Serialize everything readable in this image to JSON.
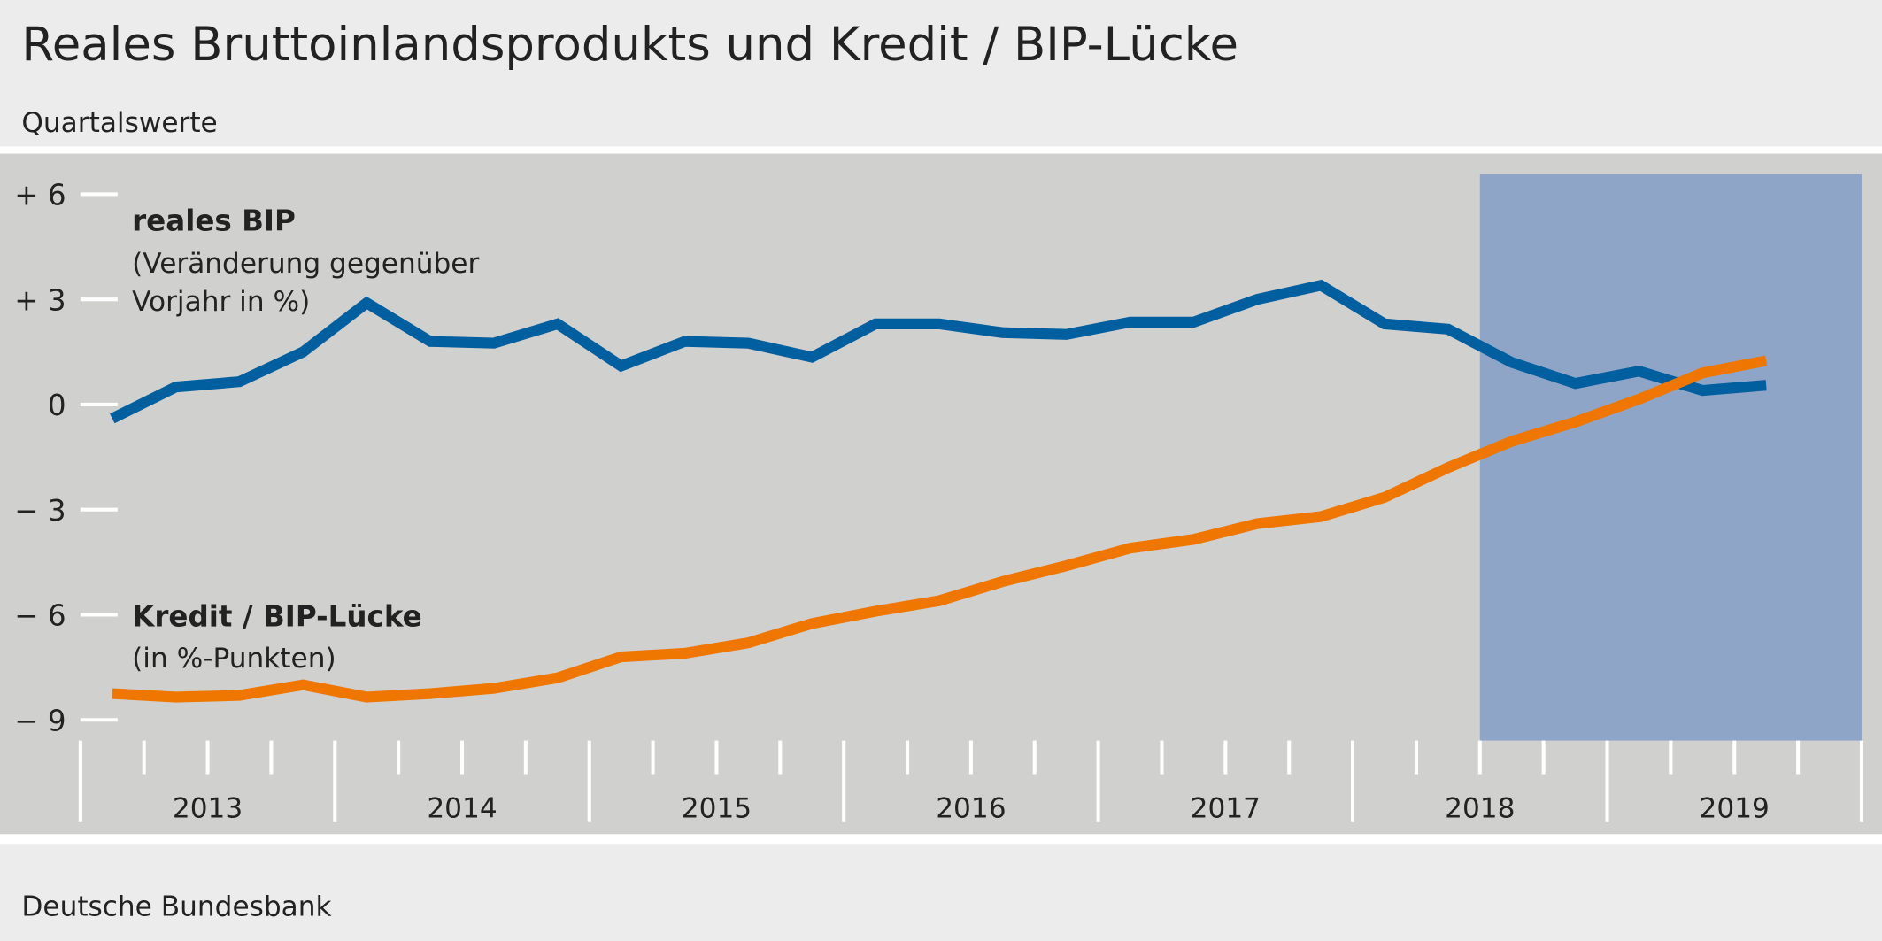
{
  "title": "Reales Bruttoinlandsprodukts und Kredit / BIP-Lücke",
  "subtitle": "Quartalswerte",
  "source": "Deutsche Bundesbank",
  "colors": {
    "bip": "#005f9f",
    "gap": "#ef7700",
    "shade": "#8ea5c8",
    "plot_bg": "#d0d0cf",
    "page_bg": "#ececec"
  },
  "chart_data": {
    "type": "line",
    "x": [
      "2013Q1",
      "2013Q2",
      "2013Q3",
      "2013Q4",
      "2014Q1",
      "2014Q2",
      "2014Q3",
      "2014Q4",
      "2015Q1",
      "2015Q2",
      "2015Q3",
      "2015Q4",
      "2016Q1",
      "2016Q2",
      "2016Q3",
      "2016Q4",
      "2017Q1",
      "2017Q2",
      "2017Q3",
      "2017Q4",
      "2018Q1",
      "2018Q2",
      "2018Q3",
      "2018Q4",
      "2019Q1",
      "2019Q2",
      "2019Q3"
    ],
    "year_labels": [
      "2013",
      "2014",
      "2015",
      "2016",
      "2017",
      "2018",
      "2019"
    ],
    "ylim": [
      -9,
      6
    ],
    "yticks": [
      6,
      3,
      0,
      -3,
      -6,
      -9
    ],
    "ytick_labels": [
      "+ 6",
      "+ 3",
      "0",
      "− 3",
      "− 6",
      "− 9"
    ],
    "shaded_from": "2018Q3",
    "shaded_to": "2019Q4",
    "series": [
      {
        "name": "reales BIP",
        "note_lines": [
          "(Veränderung gegenüber",
          "Vorjahr in %)"
        ],
        "values": [
          -0.4,
          0.5,
          0.65,
          1.5,
          2.9,
          1.8,
          1.75,
          2.3,
          1.1,
          1.8,
          1.75,
          1.35,
          2.3,
          2.3,
          2.05,
          2.0,
          2.35,
          2.35,
          3.0,
          3.4,
          2.3,
          2.15,
          1.2,
          0.6,
          0.95,
          0.4,
          0.55
        ]
      },
      {
        "name": "Kredit / BIP-Lücke",
        "note_lines": [
          "(in %-Punkten)"
        ],
        "values": [
          -8.25,
          -8.35,
          -8.3,
          -8.0,
          -8.35,
          -8.25,
          -8.1,
          -7.8,
          -7.2,
          -7.1,
          -6.8,
          -6.25,
          -5.9,
          -5.6,
          -5.05,
          -4.6,
          -4.1,
          -3.85,
          -3.4,
          -3.2,
          -2.65,
          -1.8,
          -1.05,
          -0.5,
          0.15,
          0.9,
          1.25
        ]
      }
    ]
  }
}
